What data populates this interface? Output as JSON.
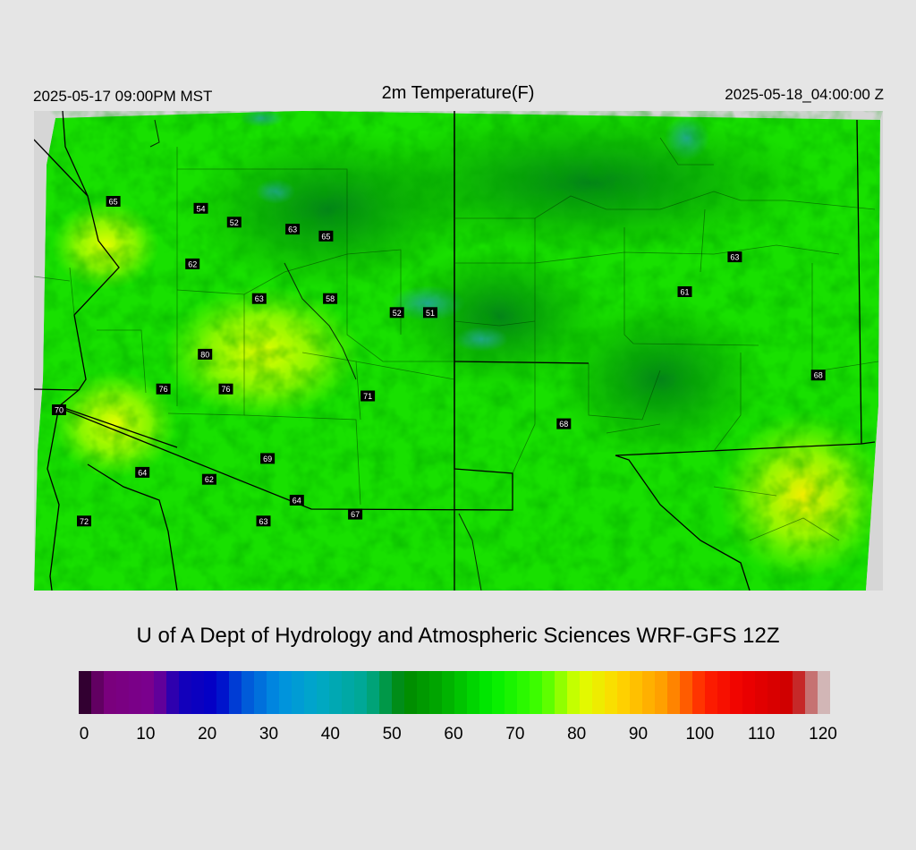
{
  "header": {
    "local_time": "2025-05-17 09:00PM MST",
    "title": "2m Temperature(F)",
    "valid_time": "2025-05-18_04:00:00 Z"
  },
  "credit": "U of A Dept of Hydrology and Atmospheric Sciences WRF-GFS 12Z",
  "colorbar": {
    "min": 0,
    "max": 120,
    "ticks": [
      "0",
      "10",
      "20",
      "30",
      "40",
      "50",
      "60",
      "70",
      "80",
      "90",
      "100",
      "110",
      "120"
    ],
    "stops": [
      {
        "v": 0,
        "c": "#1a0018"
      },
      {
        "v": 4,
        "c": "#7a007a"
      },
      {
        "v": 12,
        "c": "#7a0090"
      },
      {
        "v": 16,
        "c": "#1500b8"
      },
      {
        "v": 22,
        "c": "#0000c8"
      },
      {
        "v": 26,
        "c": "#0050d8"
      },
      {
        "v": 32,
        "c": "#0090e0"
      },
      {
        "v": 38,
        "c": "#00a8c8"
      },
      {
        "v": 46,
        "c": "#00a890"
      },
      {
        "v": 52,
        "c": "#008800"
      },
      {
        "v": 58,
        "c": "#00aa00"
      },
      {
        "v": 66,
        "c": "#00ee00"
      },
      {
        "v": 74,
        "c": "#44ff00"
      },
      {
        "v": 80,
        "c": "#ddff00"
      },
      {
        "v": 86,
        "c": "#ffd800"
      },
      {
        "v": 94,
        "c": "#ff9800"
      },
      {
        "v": 100,
        "c": "#ff2000"
      },
      {
        "v": 106,
        "c": "#ee0000"
      },
      {
        "v": 114,
        "c": "#cc0000"
      },
      {
        "v": 116,
        "c": "#c05050"
      },
      {
        "v": 120,
        "c": "#d8d8d8"
      }
    ]
  },
  "stations": [
    {
      "label": "65",
      "lon": -112.7,
      "lat": 36.6
    },
    {
      "label": "54",
      "lon": -110.6,
      "lat": 36.5
    },
    {
      "label": "52",
      "lon": -109.8,
      "lat": 36.3
    },
    {
      "label": "63",
      "lon": -108.4,
      "lat": 36.2
    },
    {
      "label": "65",
      "lon": -107.6,
      "lat": 36.1
    },
    {
      "label": "62",
      "lon": -110.8,
      "lat": 35.7
    },
    {
      "label": "63",
      "lon": -109.2,
      "lat": 35.2
    },
    {
      "label": "58",
      "lon": -107.5,
      "lat": 35.2
    },
    {
      "label": "52",
      "lon": -105.9,
      "lat": 35.0
    },
    {
      "label": "51",
      "lon": -105.1,
      "lat": 35.0
    },
    {
      "label": "63",
      "lon": -97.8,
      "lat": 35.8
    },
    {
      "label": "61",
      "lon": -99.0,
      "lat": 35.3
    },
    {
      "label": "80",
      "lon": -110.5,
      "lat": 34.4
    },
    {
      "label": "76",
      "lon": -111.5,
      "lat": 33.9
    },
    {
      "label": "76",
      "lon": -110.0,
      "lat": 33.9
    },
    {
      "label": "70",
      "lon": -114.0,
      "lat": 33.6
    },
    {
      "label": "71",
      "lon": -106.6,
      "lat": 33.8
    },
    {
      "label": "68",
      "lon": -101.9,
      "lat": 33.4
    },
    {
      "label": "68",
      "lon": -95.8,
      "lat": 34.1
    },
    {
      "label": "69",
      "lon": -109.0,
      "lat": 32.9
    },
    {
      "label": "64",
      "lon": -112.0,
      "lat": 32.7
    },
    {
      "label": "62",
      "lon": -110.4,
      "lat": 32.6
    },
    {
      "label": "64",
      "lon": -108.3,
      "lat": 32.3
    },
    {
      "label": "67",
      "lon": -106.9,
      "lat": 32.1
    },
    {
      "label": "63",
      "lon": -109.1,
      "lat": 32.0
    },
    {
      "label": "72",
      "lon": -113.4,
      "lat": 32.0
    }
  ]
}
